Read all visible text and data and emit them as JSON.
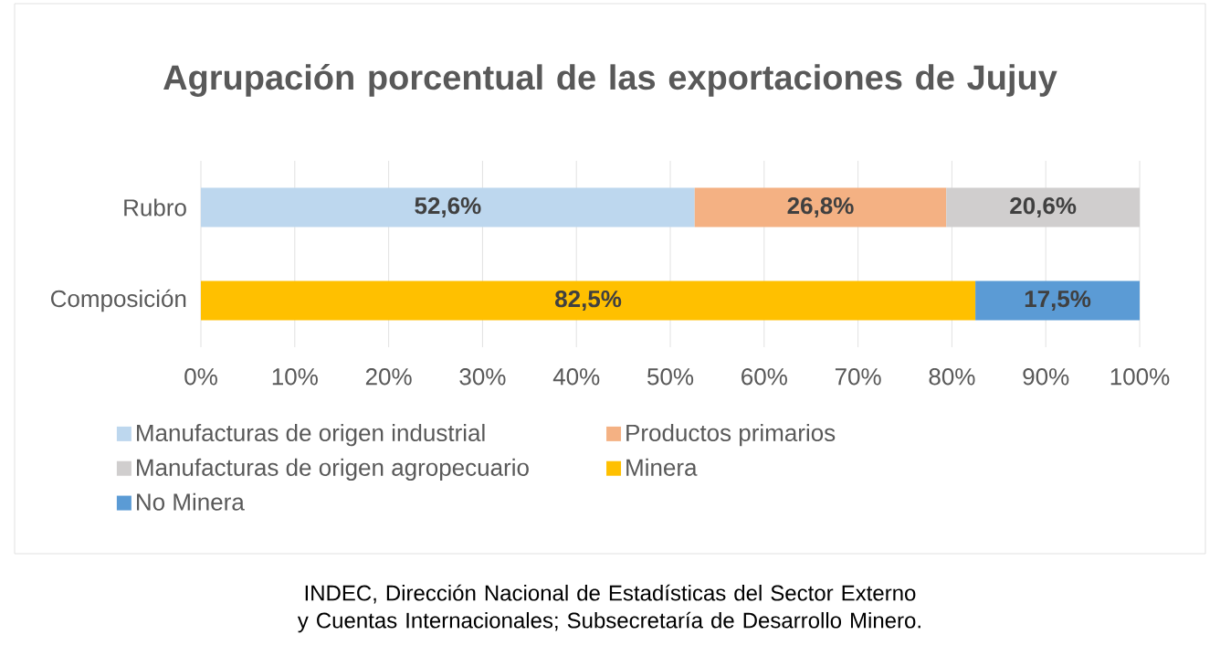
{
  "chart_data": {
    "type": "bar",
    "orientation": "horizontal",
    "stacked": true,
    "title": "Agrupación porcentual de las exportaciones de Jujuy",
    "categories": [
      "Rubro",
      "Composición"
    ],
    "series": [
      {
        "name": "Manufacturas de origen industrial",
        "color": "#bdd7ee",
        "values": [
          52.6,
          null
        ],
        "value_labels": [
          "52,6%",
          null
        ]
      },
      {
        "name": "Productos primarios",
        "color": "#f4b183",
        "values": [
          26.8,
          null
        ],
        "value_labels": [
          "26,8%",
          null
        ]
      },
      {
        "name": "Manufacturas de origen agropecuario",
        "color": "#d0cece",
        "values": [
          20.6,
          null
        ],
        "value_labels": [
          "20,6%",
          null
        ]
      },
      {
        "name": "Minera",
        "color": "#ffc000",
        "values": [
          null,
          82.5
        ],
        "value_labels": [
          null,
          "82,5%"
        ]
      },
      {
        "name": "No Minera",
        "color": "#5b9bd5",
        "values": [
          null,
          17.5
        ],
        "value_labels": [
          null,
          "17,5%"
        ]
      }
    ],
    "xlim": [
      0,
      100
    ],
    "xticks": [
      {
        "value": 0,
        "label": "0%"
      },
      {
        "value": 10,
        "label": "10%"
      },
      {
        "value": 20,
        "label": "20%"
      },
      {
        "value": 30,
        "label": "30%"
      },
      {
        "value": 40,
        "label": "40%"
      },
      {
        "value": 50,
        "label": "50%"
      },
      {
        "value": 60,
        "label": "60%"
      },
      {
        "value": 70,
        "label": "70%"
      },
      {
        "value": 80,
        "label": "80%"
      },
      {
        "value": 90,
        "label": "90%"
      },
      {
        "value": 100,
        "label": "100%"
      }
    ],
    "grid": "x",
    "legend": "bottom",
    "annotations": [
      "INDEC, Dirección Nacional de Estadísticas del Sector Externo y Cuentas Internacionales; Subsecretaría de Desarrollo Minero."
    ]
  }
}
